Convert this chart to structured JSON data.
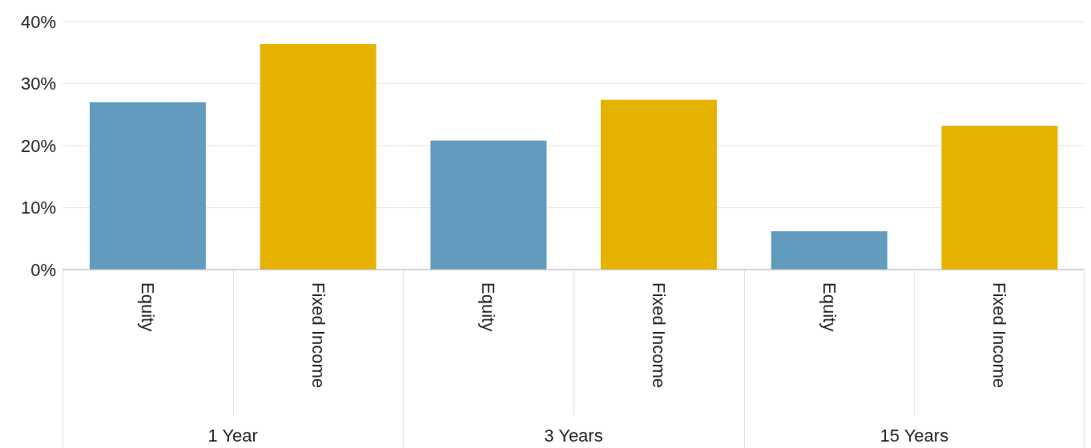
{
  "chart_data": {
    "type": "bar",
    "categories": [
      "Equity",
      "Fixed Income",
      "Equity",
      "Fixed Income",
      "Equity",
      "Fixed Income"
    ],
    "values": [
      27.0,
      36.4,
      20.8,
      27.4,
      6.2,
      23.2
    ],
    "colors": [
      "#629bbe",
      "#e6b200",
      "#629bbe",
      "#e6b200",
      "#629bbe",
      "#e6b200"
    ],
    "annotations": [
      "1 Year",
      "3 Years",
      "15 Years"
    ],
    "ylim": [
      0,
      40
    ],
    "yticks": [
      {
        "value": 0,
        "label": "0%"
      },
      {
        "value": 10,
        "label": "10%"
      },
      {
        "value": 20,
        "label": "20%"
      },
      {
        "value": 30,
        "label": "30%"
      },
      {
        "value": 40,
        "label": "40%"
      }
    ],
    "grid": "y",
    "legend": false
  }
}
